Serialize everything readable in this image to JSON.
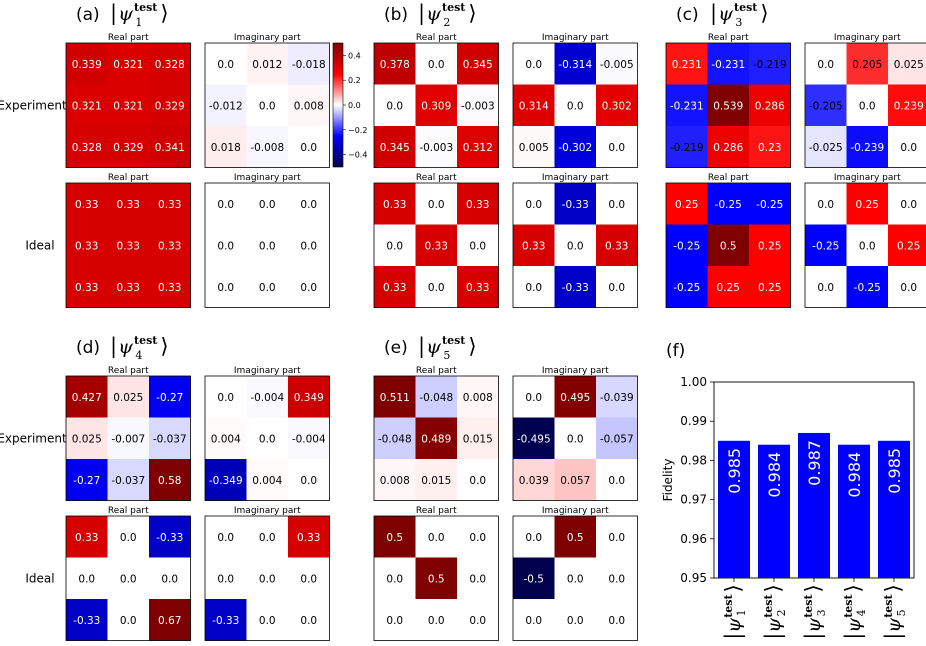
{
  "row_labels": {
    "experiment": "Experiment",
    "ideal": "Ideal"
  },
  "matrix_titles": {
    "real": "Real part",
    "imag": "Imaginary part"
  },
  "colormap": {
    "name": "seismic",
    "low": "#00004c",
    "mid": "#ffffff",
    "high": "#7f0000",
    "vmin": -0.5,
    "vmax": 0.5
  },
  "colorbar": {
    "ticks": [
      "0.4",
      "0.2",
      "0.0",
      "−0.2",
      "−0.4"
    ],
    "tick_values": [
      0.4,
      0.2,
      0.0,
      -0.2,
      -0.4
    ]
  },
  "chart_data": [
    {
      "type": "heatmap",
      "panel_label": "(a)",
      "state_index": "1",
      "experiment": {
        "real": [
          [
            "0.339",
            "0.321",
            "0.328"
          ],
          [
            "0.321",
            "0.321",
            "0.329"
          ],
          [
            "0.328",
            "0.329",
            "0.341"
          ]
        ],
        "imag": [
          [
            "0.0",
            "0.012",
            "-0.018"
          ],
          [
            "-0.012",
            "0.0",
            "0.008"
          ],
          [
            "0.018",
            "-0.008",
            "0.0"
          ]
        ]
      },
      "ideal": {
        "real": [
          [
            "0.33",
            "0.33",
            "0.33"
          ],
          [
            "0.33",
            "0.33",
            "0.33"
          ],
          [
            "0.33",
            "0.33",
            "0.33"
          ]
        ],
        "imag": [
          [
            "0.0",
            "0.0",
            "0.0"
          ],
          [
            "0.0",
            "0.0",
            "0.0"
          ],
          [
            "0.0",
            "0.0",
            "0.0"
          ]
        ]
      }
    },
    {
      "type": "heatmap",
      "panel_label": "(b)",
      "state_index": "2",
      "experiment": {
        "real": [
          [
            "0.378",
            "0.0",
            "0.345"
          ],
          [
            "0.0",
            "0.309",
            "-0.003"
          ],
          [
            "0.345",
            "-0.003",
            "0.312"
          ]
        ],
        "imag": [
          [
            "0.0",
            "-0.314",
            "-0.005"
          ],
          [
            "0.314",
            "0.0",
            "0.302"
          ],
          [
            "0.005",
            "-0.302",
            "0.0"
          ]
        ]
      },
      "ideal": {
        "real": [
          [
            "0.33",
            "0.0",
            "0.33"
          ],
          [
            "0.0",
            "0.33",
            "0.0"
          ],
          [
            "0.33",
            "0.0",
            "0.33"
          ]
        ],
        "imag": [
          [
            "0.0",
            "-0.33",
            "0.0"
          ],
          [
            "0.33",
            "0.0",
            "0.33"
          ],
          [
            "0.0",
            "-0.33",
            "0.0"
          ]
        ]
      }
    },
    {
      "type": "heatmap",
      "panel_label": "(c)",
      "state_index": "3",
      "experiment": {
        "real": [
          [
            "0.231",
            "-0.231",
            "-0.219"
          ],
          [
            "-0.231",
            "0.539",
            "0.286"
          ],
          [
            "-0.219",
            "0.286",
            "0.23"
          ]
        ],
        "imag": [
          [
            "0.0",
            "0.205",
            "0.025"
          ],
          [
            "-0.205",
            "0.0",
            "0.239"
          ],
          [
            "-0.025",
            "-0.239",
            "0.0"
          ]
        ]
      },
      "ideal": {
        "real": [
          [
            "0.25",
            "-0.25",
            "-0.25"
          ],
          [
            "-0.25",
            "0.5",
            "0.25"
          ],
          [
            "-0.25",
            "0.25",
            "0.25"
          ]
        ],
        "imag": [
          [
            "0.0",
            "0.25",
            "0.0"
          ],
          [
            "-0.25",
            "0.0",
            "0.25"
          ],
          [
            "0.0",
            "-0.25",
            "0.0"
          ]
        ]
      }
    },
    {
      "type": "heatmap",
      "panel_label": "(d)",
      "state_index": "4",
      "experiment": {
        "real": [
          [
            "0.427",
            "0.025",
            "-0.27"
          ],
          [
            "0.025",
            "-0.007",
            "-0.037"
          ],
          [
            "-0.27",
            "-0.037",
            "0.58"
          ]
        ],
        "imag": [
          [
            "0.0",
            "-0.004",
            "0.349"
          ],
          [
            "0.004",
            "0.0",
            "-0.004"
          ],
          [
            "-0.349",
            "0.004",
            "0.0"
          ]
        ]
      },
      "ideal": {
        "real": [
          [
            "0.33",
            "0.0",
            "-0.33"
          ],
          [
            "0.0",
            "0.0",
            "0.0"
          ],
          [
            "-0.33",
            "0.0",
            "0.67"
          ]
        ],
        "imag": [
          [
            "0.0",
            "0.0",
            "0.33"
          ],
          [
            "0.0",
            "0.0",
            "0.0"
          ],
          [
            "-0.33",
            "0.0",
            "0.0"
          ]
        ]
      }
    },
    {
      "type": "heatmap",
      "panel_label": "(e)",
      "state_index": "5",
      "experiment": {
        "real": [
          [
            "0.511",
            "-0.048",
            "0.008"
          ],
          [
            "-0.048",
            "0.489",
            "0.015"
          ],
          [
            "0.008",
            "0.015",
            "0.0"
          ]
        ],
        "imag": [
          [
            "0.0",
            "0.495",
            "-0.039"
          ],
          [
            "-0.495",
            "0.0",
            "-0.057"
          ],
          [
            "0.039",
            "0.057",
            "0.0"
          ]
        ]
      },
      "ideal": {
        "real": [
          [
            "0.5",
            "0.0",
            "0.0"
          ],
          [
            "0.0",
            "0.5",
            "0.0"
          ],
          [
            "0.0",
            "0.0",
            "0.0"
          ]
        ],
        "imag": [
          [
            "0.0",
            "0.5",
            "0.0"
          ],
          [
            "-0.5",
            "0.0",
            "0.0"
          ],
          [
            "0.0",
            "0.0",
            "0.0"
          ]
        ]
      }
    },
    {
      "type": "bar",
      "panel_label": "(f)",
      "ylabel": "Fidelity",
      "ylim": [
        0.95,
        1.0
      ],
      "yticks": [
        "0.95",
        "0.96",
        "0.97",
        "0.98",
        "0.99",
        "1.00"
      ],
      "categories": [
        "1",
        "2",
        "3",
        "4",
        "5"
      ],
      "values": [
        0.985,
        0.984,
        0.987,
        0.984,
        0.985
      ],
      "value_labels": [
        "0.985",
        "0.984",
        "0.987",
        "0.984",
        "0.985"
      ],
      "bar_color": "#0000ff"
    }
  ]
}
